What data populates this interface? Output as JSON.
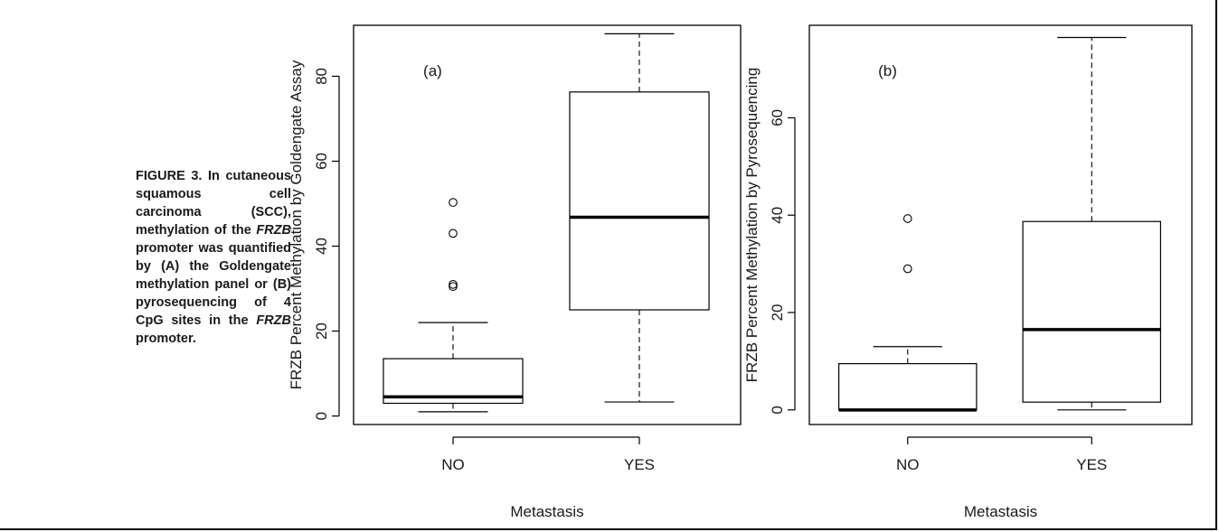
{
  "caption": {
    "lead": "FIGURE 3.",
    "part1": " In cutaneous squamous cell carcinoma (SCC), methylation of the ",
    "gene1": "FRZB",
    "part2": " promoter was quantified by (A) the Goldengate methylation panel or (B) pyrosequencing of 4 CpG sites in the ",
    "gene2": "FRZB",
    "part3": " promoter."
  },
  "chart_data": [
    {
      "type": "box",
      "panel_label": "(a)",
      "xlabel": "Metastasis",
      "ylabel": "FRZB Percent Methylation by Goldengate Assay",
      "categories": [
        "NO",
        "YES"
      ],
      "ylim": [
        -2,
        92
      ],
      "yticks": [
        0,
        20,
        40,
        60,
        80
      ],
      "boxes": [
        {
          "category": "NO",
          "whisker_low": 1,
          "q1": 3,
          "median": 4.5,
          "q3": 13.5,
          "whisker_high": 22,
          "outliers": [
            30.5,
            31,
            43,
            50.3
          ]
        },
        {
          "category": "YES",
          "whisker_low": 3.3,
          "q1": 25,
          "median": 46.8,
          "q3": 76.3,
          "whisker_high": 90,
          "outliers": []
        }
      ]
    },
    {
      "type": "box",
      "panel_label": "(b)",
      "xlabel": "Metastasis",
      "ylabel": "FRZB Percent Methylation by Pyrosequencing",
      "categories": [
        "NO",
        "YES"
      ],
      "ylim": [
        -3,
        79
      ],
      "yticks": [
        0,
        20,
        40,
        60
      ],
      "boxes": [
        {
          "category": "NO",
          "whisker_low": 0,
          "q1": 0,
          "median": 0,
          "q3": 9.5,
          "whisker_high": 13,
          "outliers": [
            29,
            39.3
          ]
        },
        {
          "category": "YES",
          "whisker_low": 0,
          "q1": 1.6,
          "median": 16.5,
          "q3": 38.7,
          "whisker_high": 76.5,
          "outliers": []
        }
      ]
    }
  ]
}
